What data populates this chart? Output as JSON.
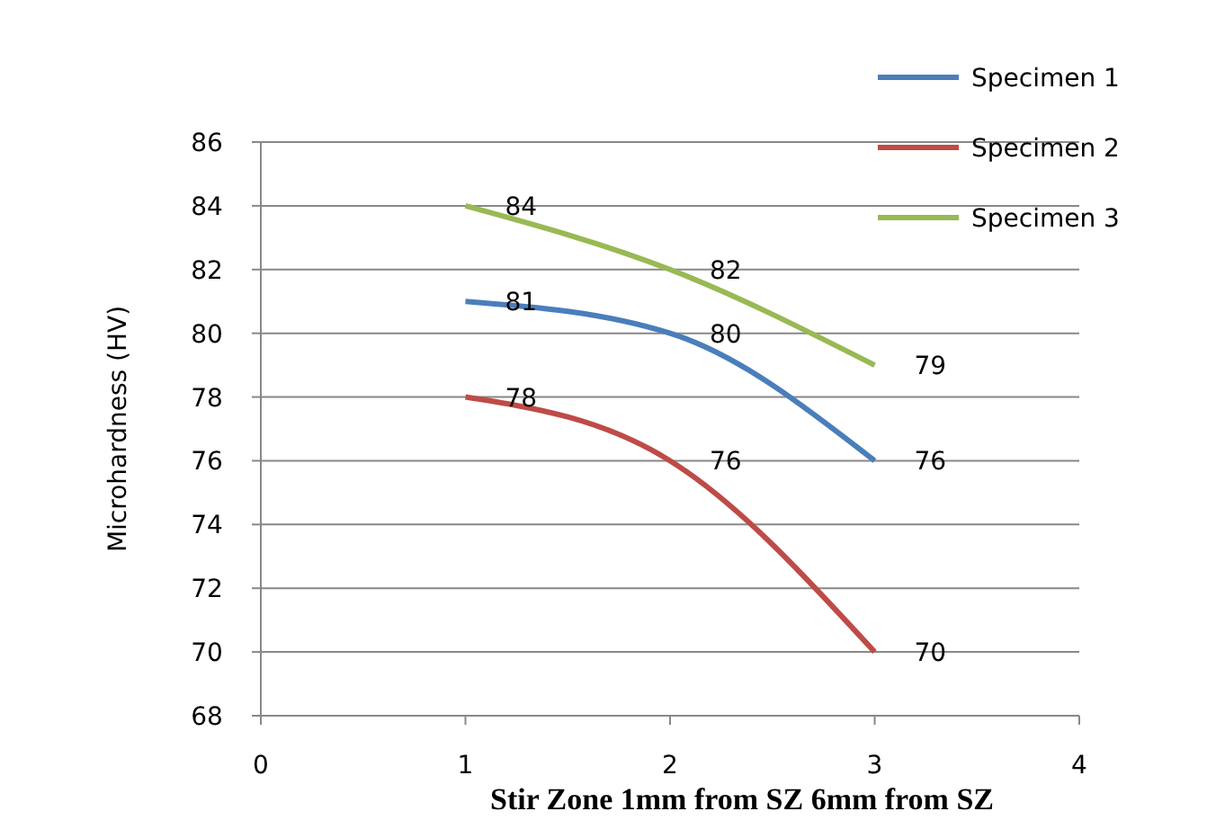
{
  "chart_data": {
    "type": "line",
    "xlabel": "Stir Zone 1mm from SZ 6mm from SZ",
    "ylabel": "Microhardness (HV)",
    "x": [
      1,
      2,
      3
    ],
    "series": [
      {
        "name": "Specimen 1",
        "color": "#4a7ebb",
        "values": [
          81,
          80,
          76
        ]
      },
      {
        "name": "Specimen 2",
        "color": "#be4b48",
        "values": [
          78,
          76,
          70
        ]
      },
      {
        "name": "Specimen 3",
        "color": "#98b954",
        "values": [
          84,
          82,
          79
        ]
      }
    ],
    "xlim": [
      0,
      4
    ],
    "xticks": [
      0,
      1,
      2,
      3,
      4
    ],
    "ylim": [
      68,
      86
    ],
    "yticks": [
      68,
      70,
      72,
      74,
      76,
      78,
      80,
      82,
      84,
      86
    ],
    "grid": "y",
    "legend": "top right",
    "data_labels": true,
    "marker": "none",
    "line_style": "solid"
  }
}
